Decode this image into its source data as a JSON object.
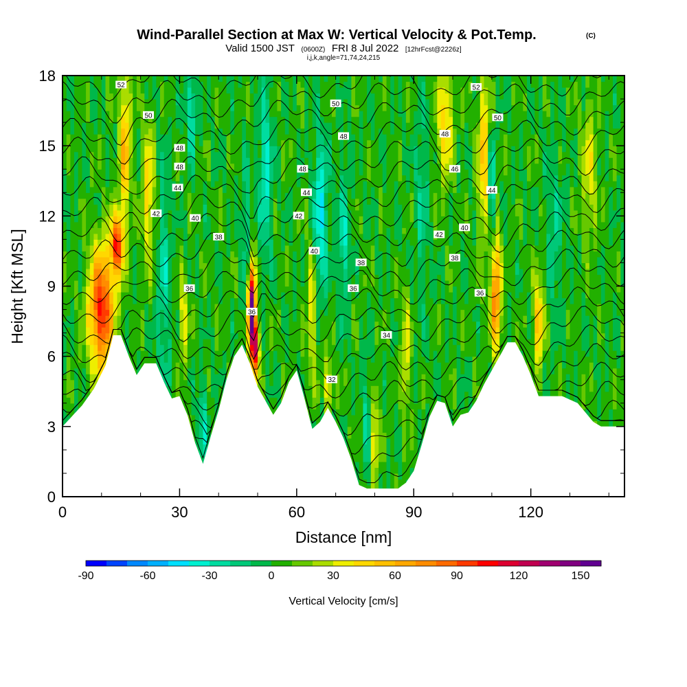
{
  "title": {
    "main": "Wind-Parallel Section at Max W: Vertical Velocity & Pot.Temp.",
    "main_suffix": "(C)",
    "valid_prefix": "Valid 1500 JST",
    "valid_zulu": "(0600Z)",
    "valid_date": "FRI 8 Jul 2022",
    "valid_fcst": "[12hrFcst@2226z]",
    "indices": "i,j,k,angle=71,74,24,215"
  },
  "chart_data": {
    "type": "heatmap",
    "xlabel": "Distance [nm]",
    "ylabel": "Height [Kft MSL]",
    "xlim": [
      0,
      144
    ],
    "ylim": [
      0,
      18
    ],
    "x_ticks": [
      0,
      30,
      60,
      90,
      120
    ],
    "x_tick_labels": [
      "0",
      "30",
      "60",
      "90",
      "120"
    ],
    "y_ticks": [
      0,
      3,
      6,
      9,
      12,
      15,
      18
    ],
    "y_tick_labels": [
      "0",
      "3",
      "6",
      "9",
      "12",
      "15",
      "18"
    ],
    "colorbar": {
      "title": "Vertical Velocity [cm/s]",
      "min": -90,
      "max": 160,
      "step": 10,
      "tick_values": [
        -90,
        -60,
        -30,
        0,
        30,
        60,
        90,
        120,
        150
      ],
      "tick_labels": [
        "-90",
        "-60",
        "-30",
        "0",
        "30",
        "60",
        "90",
        "120",
        "150"
      ],
      "colors": [
        "#0000ff",
        "#0044ff",
        "#0088ff",
        "#00b0ff",
        "#00e0ff",
        "#00f0d0",
        "#00dca0",
        "#00c878",
        "#00b84a",
        "#22b000",
        "#66c800",
        "#aadd00",
        "#eeee00",
        "#ffd800",
        "#ffc000",
        "#ffa800",
        "#ff8c00",
        "#ff6a00",
        "#ff3a00",
        "#ff0000",
        "#dd0030",
        "#c00050",
        "#a00070",
        "#800080",
        "#600090"
      ]
    },
    "terrain_kft": [
      [
        0,
        3.0
      ],
      [
        5,
        3.9
      ],
      [
        8,
        4.6
      ],
      [
        11,
        5.6
      ],
      [
        13,
        6.9
      ],
      [
        15,
        6.9
      ],
      [
        17,
        6.0
      ],
      [
        19,
        5.2
      ],
      [
        21,
        5.7
      ],
      [
        24,
        5.7
      ],
      [
        26,
        4.9
      ],
      [
        28,
        4.2
      ],
      [
        30,
        4.3
      ],
      [
        32,
        3.5
      ],
      [
        34,
        2.3
      ],
      [
        36,
        1.4
      ],
      [
        38,
        2.6
      ],
      [
        40,
        3.7
      ],
      [
        42,
        5.0
      ],
      [
        44,
        6.0
      ],
      [
        46,
        6.5
      ],
      [
        48,
        5.7
      ],
      [
        50,
        4.7
      ],
      [
        52,
        4.1
      ],
      [
        54,
        3.5
      ],
      [
        56,
        4.0
      ],
      [
        58,
        4.9
      ],
      [
        60,
        5.4
      ],
      [
        62,
        4.2
      ],
      [
        64,
        2.9
      ],
      [
        66,
        3.2
      ],
      [
        68,
        3.8
      ],
      [
        70,
        3.2
      ],
      [
        72,
        2.5
      ],
      [
        74,
        1.6
      ],
      [
        76,
        0.5
      ],
      [
        78,
        0.35
      ],
      [
        82,
        0.35
      ],
      [
        86,
        0.35
      ],
      [
        88,
        0.6
      ],
      [
        90,
        1.1
      ],
      [
        92,
        2.2
      ],
      [
        94,
        3.4
      ],
      [
        96,
        4.1
      ],
      [
        98,
        4.0
      ],
      [
        100,
        3.0
      ],
      [
        102,
        3.5
      ],
      [
        104,
        3.6
      ],
      [
        106,
        4.1
      ],
      [
        108,
        4.8
      ],
      [
        110,
        5.4
      ],
      [
        112,
        6.0
      ],
      [
        114,
        6.6
      ],
      [
        116,
        6.6
      ],
      [
        118,
        6.0
      ],
      [
        120,
        5.2
      ],
      [
        122,
        4.3
      ],
      [
        124,
        4.3
      ],
      [
        128,
        4.3
      ],
      [
        132,
        4.0
      ],
      [
        134,
        3.6
      ],
      [
        136,
        3.2
      ],
      [
        138,
        3.0
      ],
      [
        144,
        3.0
      ]
    ],
    "updrafts": [
      {
        "x": 10,
        "y": 8.0,
        "amp": 100,
        "wx": 3.2,
        "wy": 2.6
      },
      {
        "x": 14,
        "y": 10.8,
        "amp": 95,
        "wx": 1.6,
        "wy": 1.3
      },
      {
        "x": 16,
        "y": 15.0,
        "amp": 55,
        "wx": 1.4,
        "wy": 3.2
      },
      {
        "x": 22,
        "y": 13.0,
        "amp": 45,
        "wx": 1.5,
        "wy": 3.0
      },
      {
        "x": 31,
        "y": 7.6,
        "amp": 35,
        "wx": 1.2,
        "wy": 1.8
      },
      {
        "x": 48.5,
        "y": 8.0,
        "amp": 165,
        "wx": 0.9,
        "wy": 1.9
      },
      {
        "x": 49.5,
        "y": 6.3,
        "amp": 110,
        "wx": 0.8,
        "wy": 1.2
      },
      {
        "x": 64,
        "y": 8.0,
        "amp": 35,
        "wx": 1.4,
        "wy": 3.0
      },
      {
        "x": 68,
        "y": 4.8,
        "amp": 40,
        "wx": 1.0,
        "wy": 1.3
      },
      {
        "x": 80,
        "y": 2.5,
        "amp": 40,
        "wx": 1.0,
        "wy": 2.0
      },
      {
        "x": 88,
        "y": 6.0,
        "amp": 35,
        "wx": 1.1,
        "wy": 2.5
      },
      {
        "x": 98,
        "y": 16.0,
        "amp": 45,
        "wx": 2.0,
        "wy": 2.5
      },
      {
        "x": 108,
        "y": 14.5,
        "amp": 50,
        "wx": 1.6,
        "wy": 3.5
      },
      {
        "x": 111,
        "y": 8.8,
        "amp": 80,
        "wx": 1.3,
        "wy": 2.6
      },
      {
        "x": 122,
        "y": 7.5,
        "amp": 55,
        "wx": 1.3,
        "wy": 1.9
      },
      {
        "x": 135,
        "y": 14.0,
        "amp": 30,
        "wx": 2.0,
        "wy": 3.0
      }
    ],
    "downdrafts": [
      {
        "x": 26,
        "y": 9.0,
        "amp": -25,
        "wx": 1.8,
        "wy": 5.0
      },
      {
        "x": 36,
        "y": 3.0,
        "amp": -30,
        "wx": 1.2,
        "wy": 2.0
      },
      {
        "x": 47,
        "y": 11.5,
        "amp": -20,
        "wx": 1.3,
        "wy": 3.0
      },
      {
        "x": 52,
        "y": 14.0,
        "amp": -35,
        "wx": 1.6,
        "wy": 3.8
      },
      {
        "x": 66,
        "y": 12.0,
        "amp": -45,
        "wx": 1.8,
        "wy": 3.5
      },
      {
        "x": 72,
        "y": 11.0,
        "amp": -30,
        "wx": 1.6,
        "wy": 3.0
      },
      {
        "x": 78,
        "y": 3.5,
        "amp": -25,
        "wx": 1.0,
        "wy": 2.5
      },
      {
        "x": 92,
        "y": 12.5,
        "amp": -20,
        "wx": 1.6,
        "wy": 4.0
      },
      {
        "x": 110,
        "y": 13.0,
        "amp": -45,
        "wx": 1.0,
        "wy": 2.6
      },
      {
        "x": 33,
        "y": 16.5,
        "amp": -35,
        "wx": 1.3,
        "wy": 2.0
      },
      {
        "x": 126,
        "y": 11.5,
        "amp": -20,
        "wx": 2.0,
        "wy": 3.5
      }
    ],
    "theta_lines": [
      32,
      33,
      34,
      35,
      36,
      37,
      38,
      39,
      40,
      41,
      42,
      43,
      44,
      45,
      46,
      47,
      48,
      49,
      50,
      51,
      52,
      53
    ],
    "contour_labels": [
      {
        "text": "52",
        "x": 15,
        "y": 17.6
      },
      {
        "text": "50",
        "x": 22,
        "y": 16.3
      },
      {
        "text": "48",
        "x": 30,
        "y": 14.9
      },
      {
        "text": "48",
        "x": 30,
        "y": 14.1
      },
      {
        "text": "44",
        "x": 29.5,
        "y": 13.2
      },
      {
        "text": "42",
        "x": 24,
        "y": 12.1
      },
      {
        "text": "40",
        "x": 34,
        "y": 11.9
      },
      {
        "text": "38",
        "x": 40,
        "y": 11.1
      },
      {
        "text": "36",
        "x": 32.5,
        "y": 8.9
      },
      {
        "text": "36",
        "x": 48.5,
        "y": 7.9
      },
      {
        "text": "50",
        "x": 70,
        "y": 16.8
      },
      {
        "text": "48",
        "x": 72,
        "y": 15.4
      },
      {
        "text": "48",
        "x": 61.5,
        "y": 14.0
      },
      {
        "text": "44",
        "x": 62.5,
        "y": 13.0
      },
      {
        "text": "42",
        "x": 60.5,
        "y": 12.0
      },
      {
        "text": "40",
        "x": 64.5,
        "y": 10.5
      },
      {
        "text": "38",
        "x": 76.5,
        "y": 10.0
      },
      {
        "text": "36",
        "x": 74.5,
        "y": 8.9
      },
      {
        "text": "34",
        "x": 83,
        "y": 6.9
      },
      {
        "text": "32",
        "x": 69,
        "y": 5.0
      },
      {
        "text": "52",
        "x": 106,
        "y": 17.5
      },
      {
        "text": "50",
        "x": 111.5,
        "y": 16.2
      },
      {
        "text": "48",
        "x": 98,
        "y": 15.5
      },
      {
        "text": "46",
        "x": 100.5,
        "y": 14.0
      },
      {
        "text": "44",
        "x": 110,
        "y": 13.1
      },
      {
        "text": "42",
        "x": 96.5,
        "y": 11.2
      },
      {
        "text": "40",
        "x": 103,
        "y": 11.5
      },
      {
        "text": "38",
        "x": 100.5,
        "y": 10.2
      },
      {
        "text": "36",
        "x": 107,
        "y": 8.7
      }
    ]
  }
}
